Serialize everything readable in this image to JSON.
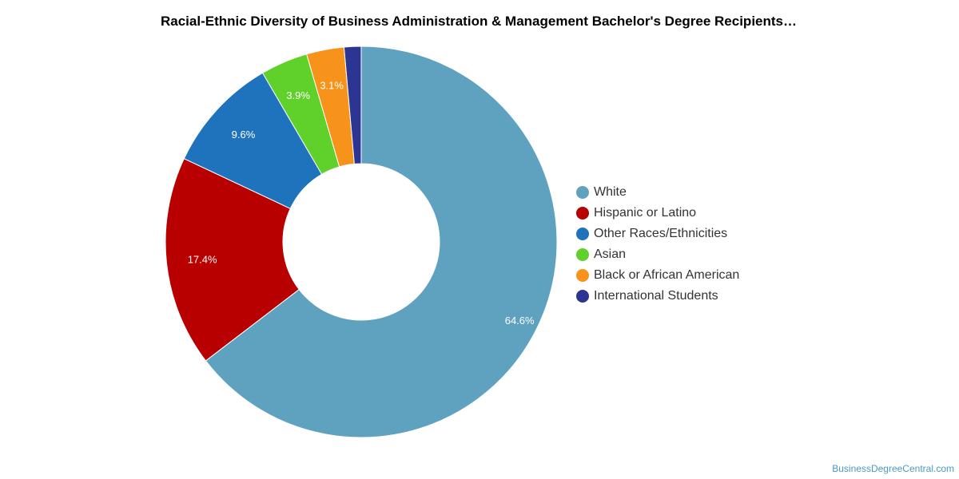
{
  "chart_data": {
    "type": "pie",
    "title": "Racial-Ethnic Diversity of Business Administration & Management Bachelor's Degree Recipients…",
    "categories": [
      "White",
      "Hispanic or Latino",
      "Other Races/Ethnicities",
      "Asian",
      "Black or African American",
      "International Students"
    ],
    "values": [
      64.6,
      17.4,
      9.6,
      3.9,
      3.1,
      1.4
    ],
    "data_labels": [
      "64.6%",
      "17.4%",
      "9.6%",
      "3.9%",
      "3.1%",
      ""
    ],
    "colors": [
      "#5ea2bf",
      "#b80000",
      "#1f73bd",
      "#5fd12a",
      "#f7931a",
      "#2c3592"
    ],
    "legend_position": "right"
  },
  "footer": {
    "source": "BusinessDegreeCentral.com"
  }
}
